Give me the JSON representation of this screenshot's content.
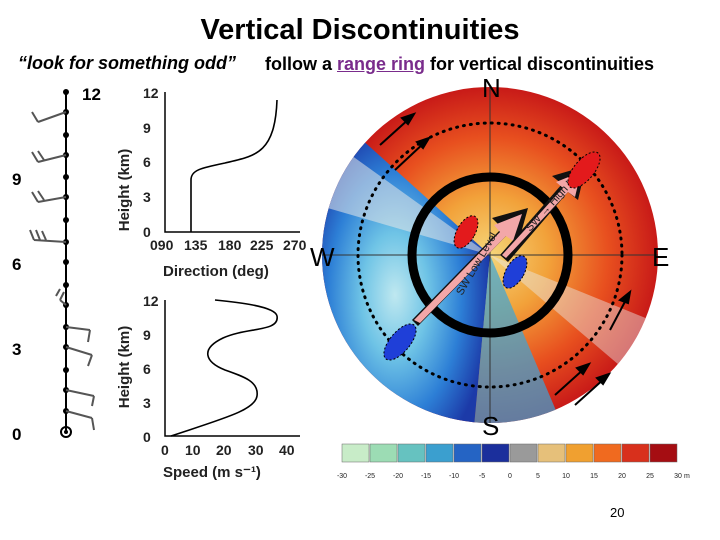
{
  "slide": {
    "title": "Vertical Discontinuities",
    "subtitle_quote": "“look for something odd”",
    "subtitle_pre": "follow a ",
    "subtitle_highlight": "range ring",
    "subtitle_post": " for vertical discontinuities",
    "page_number": "20"
  },
  "hodograph": {
    "height_labels": [
      "12",
      "9",
      "6",
      "3",
      "0"
    ]
  },
  "direction_profile": {
    "ylabel": "Height (km)",
    "xlabel": "Direction (deg)",
    "yticks": [
      "12",
      "9",
      "6",
      "3",
      "0"
    ],
    "xticks": [
      "090",
      "135",
      "180",
      "225",
      "270"
    ]
  },
  "speed_profile": {
    "ylabel": "Height (km)",
    "xlabel": "Speed (m s⁻¹)",
    "yticks": [
      "12",
      "9",
      "6",
      "3",
      "0"
    ],
    "xticks": [
      "0",
      "10",
      "20",
      "30",
      "40"
    ]
  },
  "radar": {
    "compass": {
      "north": "N",
      "south": "S",
      "east": "E",
      "west": "W"
    },
    "arrow_labels": {
      "inner_upper": "SW → High Level",
      "inner_lower": "SW Low Level"
    },
    "colors": {
      "red_marker": "#e31a1c",
      "blue_marker": "#1f3fd8",
      "ring": "#000000"
    }
  },
  "colorbar": {
    "labels": [
      "-30",
      "-25",
      "-20",
      "-15",
      "-10",
      "-5",
      "0",
      "5",
      "10",
      "15",
      "20",
      "25",
      "30"
    ],
    "unit": "m s⁻¹",
    "colors": [
      "#c8ecc8",
      "#9cdcb4",
      "#66c2c0",
      "#3b9fcf",
      "#2564c4",
      "#1b2f9c",
      "#9a9a9a",
      "#e6c07a",
      "#f0a030",
      "#f06a1f",
      "#d8301c",
      "#a50d12"
    ]
  }
}
